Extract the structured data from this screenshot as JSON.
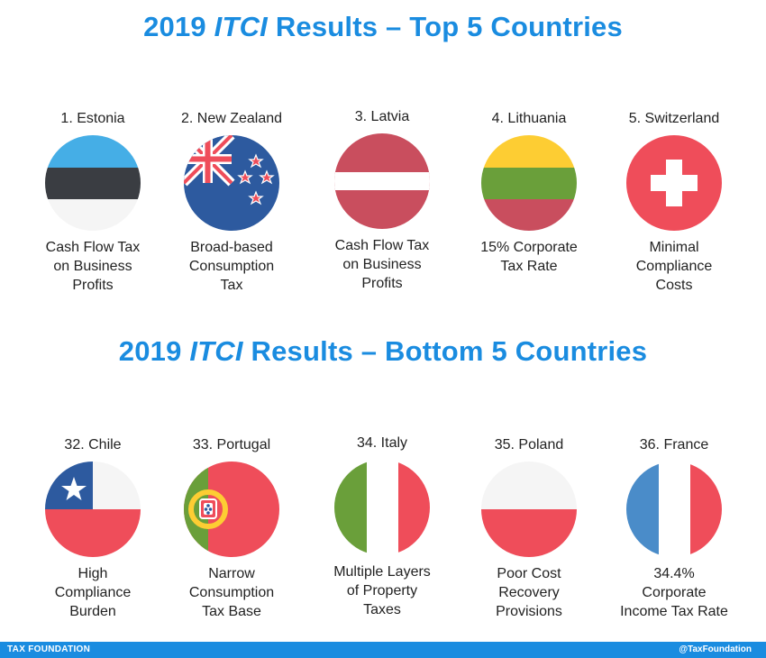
{
  "top_heading": {
    "pre": "2019 ",
    "em": "ITCI",
    "post": " Results – Top 5 Countries"
  },
  "bottom_heading": {
    "pre": "2019 ",
    "em": "ITCI",
    "post": " Results – Bottom 5 Countries"
  },
  "top": [
    {
      "rank": "1. Estonia",
      "desc": [
        "Cash Flow Tax",
        "on Business",
        "Profits"
      ],
      "flag_icon": "estonia-flag-icon"
    },
    {
      "rank": "2. New Zealand",
      "desc": [
        "Broad-based",
        "Consumption",
        "Tax"
      ],
      "flag_icon": "new-zealand-flag-icon"
    },
    {
      "rank": "3. Latvia",
      "desc": [
        "Cash Flow Tax",
        "on Business",
        "Profits"
      ],
      "flag_icon": "latvia-flag-icon"
    },
    {
      "rank": "4. Lithuania",
      "desc": [
        "15% Corporate",
        "Tax Rate"
      ],
      "flag_icon": "lithuania-flag-icon"
    },
    {
      "rank": "5. Switzerland",
      "desc": [
        "Minimal",
        "Compliance",
        "Costs"
      ],
      "flag_icon": "switzerland-flag-icon"
    }
  ],
  "bottom": [
    {
      "rank": "32. Chile",
      "desc": [
        "High",
        "Compliance",
        "Burden"
      ],
      "flag_icon": "chile-flag-icon"
    },
    {
      "rank": "33. Portugal",
      "desc": [
        "Narrow",
        "Consumption",
        "Tax Base"
      ],
      "flag_icon": "portugal-flag-icon"
    },
    {
      "rank": "34. Italy",
      "desc": [
        "Multiple Layers",
        "of Property",
        "Taxes"
      ],
      "flag_icon": "italy-flag-icon"
    },
    {
      "rank": "35. Poland",
      "desc": [
        "Poor Cost",
        "Recovery",
        "Provisions"
      ],
      "flag_icon": "poland-flag-icon"
    },
    {
      "rank": "36. France",
      "desc": [
        "34.4%",
        "Corporate",
        "Income Tax Rate"
      ],
      "flag_icon": "france-flag-icon"
    }
  ],
  "footer": {
    "left": "TAX FOUNDATION",
    "right": "@TaxFoundation"
  },
  "colors": {
    "heading_blue": "#1a8ce0",
    "red": "#ef4d5a",
    "dark": "#3a3d42",
    "light_blue": "#45aee6",
    "navy": "#2d5a9f",
    "yellow": "#fdcd33",
    "green": "#6a9f3a",
    "latvia_red": "#c94e5e"
  }
}
